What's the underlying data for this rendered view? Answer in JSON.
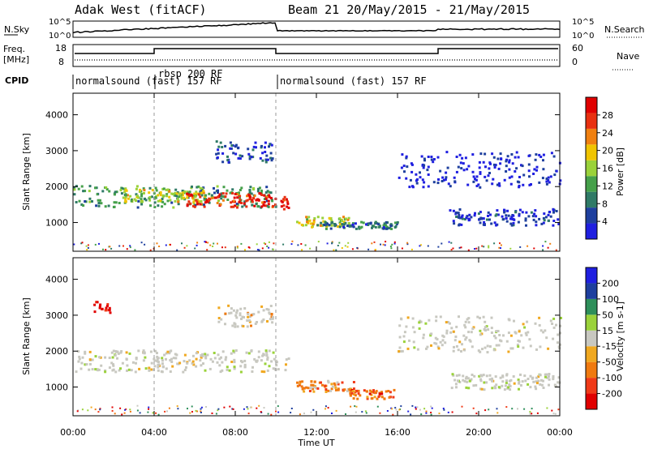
{
  "header": {
    "station": "Adak West (fitACF)",
    "beam_info": "Beam 21  20/May/2015 - 21/May/2015"
  },
  "strip_labels": {
    "nsky": "N.Sky",
    "freq_top": "Freq.",
    "freq_unit": "[MHz]",
    "cpid": "CPID",
    "nsearch": "N.Search",
    "nave": "Nave",
    "nsky_tick_top": "10^5",
    "nsky_tick_bottom": "10^0",
    "freq_tick_top": "18",
    "freq_tick_bottom": "8",
    "nave_tick_top": "60",
    "nave_tick_bottom": "0"
  },
  "cpid_segments": [
    {
      "label": "normalsound (fast) 157 RF",
      "start_hour": 0
    },
    {
      "label": "rbsp 200 RF",
      "start_hour": 4
    },
    {
      "label": "normalsound (fast) 157 RF",
      "start_hour": 10
    }
  ],
  "colors": {
    "power": [
      "#1f1fe0",
      "#1e3f9e",
      "#2f7a66",
      "#45a04a",
      "#9ad23a",
      "#f0c400",
      "#f08010",
      "#e83010",
      "#e00000"
    ],
    "velocity": [
      "#e00000",
      "#f03a18",
      "#f07a10",
      "#f0a820",
      "#c8c8c0",
      "#9ad23a",
      "#2e8f5a",
      "#1e3f9e",
      "#1f1fe0"
    ],
    "scatter_gray": "#c8c8c0"
  },
  "chart_data": [
    {
      "type": "heatmap",
      "name": "power",
      "title": "",
      "xlabel": "Time UT",
      "ylabel": "Slant Range [km]",
      "xlim": [
        0,
        24
      ],
      "ylim": [
        200,
        4600
      ],
      "x_ticks": [
        "00:00",
        "04:00",
        "08:00",
        "12:00",
        "16:00",
        "20:00",
        "00:00"
      ],
      "y_ticks": [
        1000,
        2000,
        3000,
        4000
      ],
      "colorbar": {
        "label": "Power [dB]",
        "ticks": [
          4,
          8,
          12,
          16,
          20,
          24,
          28
        ]
      },
      "regions": [
        {
          "t0": 0,
          "t1": 10,
          "r0": 1450,
          "r1": 2050,
          "level": 0.35
        },
        {
          "t0": 2.5,
          "t1": 6.5,
          "r0": 1600,
          "r1": 1950,
          "level": 0.55
        },
        {
          "t0": 5.5,
          "t1": 10,
          "r0": 1450,
          "r1": 1850,
          "level": 0.88
        },
        {
          "t0": 10,
          "t1": 10.6,
          "r0": 1400,
          "r1": 1800,
          "level": 0.9
        },
        {
          "t0": 7,
          "t1": 9.8,
          "r0": 2700,
          "r1": 3300,
          "level": 0.15
        },
        {
          "t0": 11,
          "t1": 13.6,
          "r0": 900,
          "r1": 1200,
          "level": 0.55
        },
        {
          "t0": 12,
          "t1": 16,
          "r0": 850,
          "r1": 1050,
          "level": 0.25
        },
        {
          "t0": 16,
          "t1": 24,
          "r0": 2000,
          "r1": 3000,
          "level": 0.05
        },
        {
          "t0": 18.5,
          "t1": 24,
          "r0": 950,
          "r1": 1400,
          "level": 0.12
        }
      ]
    },
    {
      "type": "heatmap",
      "name": "velocity",
      "title": "",
      "xlabel": "Time UT",
      "ylabel": "Slant Range [km]",
      "xlim": [
        0,
        24
      ],
      "ylim": [
        200,
        4600
      ],
      "x_ticks": [
        "00:00",
        "04:00",
        "08:00",
        "12:00",
        "16:00",
        "20:00",
        "00:00"
      ],
      "y_ticks": [
        1000,
        2000,
        3000,
        4000
      ],
      "colorbar": {
        "label": "Velocity [m s-1]",
        "ticks": [
          -200,
          -100,
          -50,
          -15,
          15,
          50,
          100,
          200
        ]
      },
      "regions": [
        {
          "t0": 0,
          "t1": 10.6,
          "r0": 1450,
          "r1": 2050,
          "level": 0.5
        },
        {
          "t0": 1,
          "t1": 1.8,
          "r0": 3100,
          "r1": 3400,
          "level": 0.02
        },
        {
          "t0": 11,
          "t1": 13.8,
          "r0": 900,
          "r1": 1200,
          "level": 0.3
        },
        {
          "t0": 13.5,
          "t1": 15.8,
          "r0": 700,
          "r1": 950,
          "level": 0.22
        },
        {
          "t0": 7,
          "t1": 9.8,
          "r0": 2700,
          "r1": 3300,
          "level": 0.45
        },
        {
          "t0": 16,
          "t1": 24,
          "r0": 2000,
          "r1": 3000,
          "level": 0.5
        },
        {
          "t0": 18.5,
          "t1": 24,
          "r0": 950,
          "r1": 1400,
          "level": 0.5
        }
      ]
    }
  ],
  "xlabel_bottom": "Time UT"
}
